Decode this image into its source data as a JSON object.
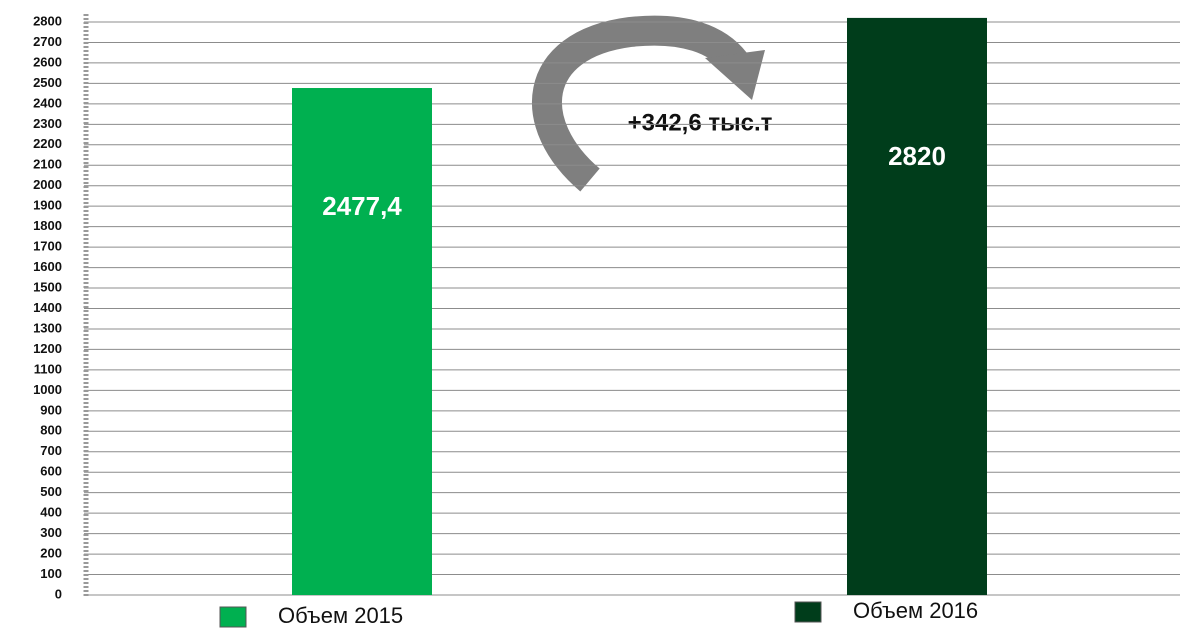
{
  "chart_data": {
    "type": "bar",
    "annotation": "+342,6 тыс.т",
    "series": [
      {
        "name": "Объем 2015",
        "color": "#00b050",
        "values": [
          2477.4
        ],
        "value_labels": [
          "2477,4"
        ]
      },
      {
        "name": "Объем 2016",
        "color": "#003d1b",
        "values": [
          2820
        ]
      }
    ],
    "ylim": [
      0,
      2800
    ],
    "yticks": [
      0,
      100,
      200,
      300,
      400,
      500,
      600,
      700,
      800,
      900,
      1000,
      1100,
      1200,
      1300,
      1400,
      1500,
      1600,
      1700,
      1800,
      1900,
      2000,
      2100,
      2200,
      2300,
      2400,
      2500,
      2600,
      2700,
      2800
    ],
    "grid": true
  }
}
